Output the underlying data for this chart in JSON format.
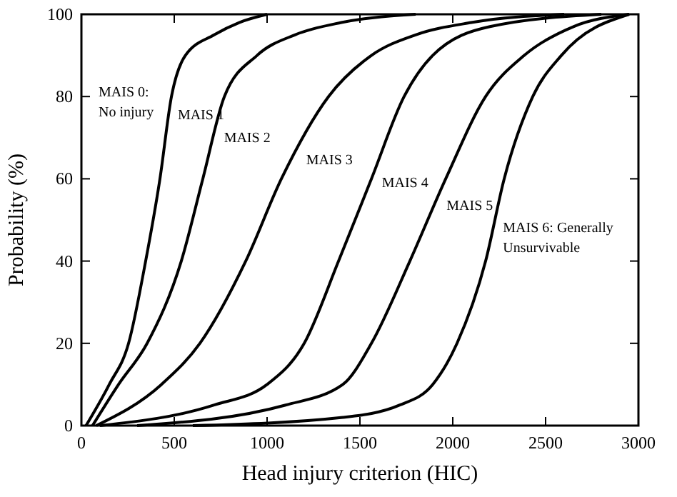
{
  "chart_data": {
    "type": "line",
    "xlabel": "Head injury criterion (HIC)",
    "ylabel": "Probability (%)",
    "xlim": [
      0,
      3000
    ],
    "ylim": [
      0,
      100
    ],
    "xticks": [
      0,
      500,
      1000,
      1500,
      2000,
      2500,
      3000
    ],
    "yticks": [
      0,
      20,
      40,
      60,
      80,
      100
    ],
    "grid": false,
    "marker": "none",
    "line_style": "solid",
    "series": [
      {
        "color": "#000000",
        "x": [
          25,
          150,
          254,
          346,
          423,
          485,
          560,
          715,
          850,
          1000
        ],
        "values": [
          0,
          10,
          20,
          40,
          60,
          80,
          90,
          95,
          98,
          100
        ]
      },
      {
        "color": "#000000",
        "x": [
          60,
          200,
          354,
          538,
          654,
          770,
          946,
          1150,
          1400,
          1800
        ],
        "values": [
          0,
          10,
          20,
          40,
          60,
          80,
          90,
          95,
          98,
          100
        ]
      },
      {
        "color": "#000000",
        "x": [
          80,
          431,
          638,
          885,
          1077,
          1331,
          1562,
          1800,
          2100,
          2600
        ],
        "values": [
          0,
          10,
          20,
          40,
          60,
          80,
          90,
          95,
          98,
          100
        ]
      },
      {
        "color": "#000000",
        "x": [
          100,
          715,
          1000,
          1200,
          1385,
          1562,
          1738,
          1892,
          2200,
          2800
        ],
        "values": [
          0,
          5,
          10,
          20,
          40,
          60,
          80,
          90,
          97,
          100
        ]
      },
      {
        "color": "#000000",
        "x": [
          300,
          1100,
          1408,
          1562,
          1769,
          1962,
          2177,
          2385,
          2650,
          2950
        ],
        "values": [
          0,
          5,
          10,
          20,
          40,
          60,
          80,
          90,
          97,
          100
        ]
      },
      {
        "color": "#000000",
        "x": [
          600,
          1408,
          1715,
          1892,
          2023,
          2177,
          2277,
          2431,
          2585,
          2950
        ],
        "values": [
          0,
          2,
          5,
          10,
          20,
          40,
          60,
          80,
          90,
          100
        ]
      }
    ],
    "annotations": [
      "MAIS 0:\nNo injury",
      "MAIS 1",
      "MAIS 2",
      "MAIS 3",
      "MAIS 4",
      "MAIS 5",
      "MAIS 6: Generally\nUnsurvivable"
    ]
  }
}
